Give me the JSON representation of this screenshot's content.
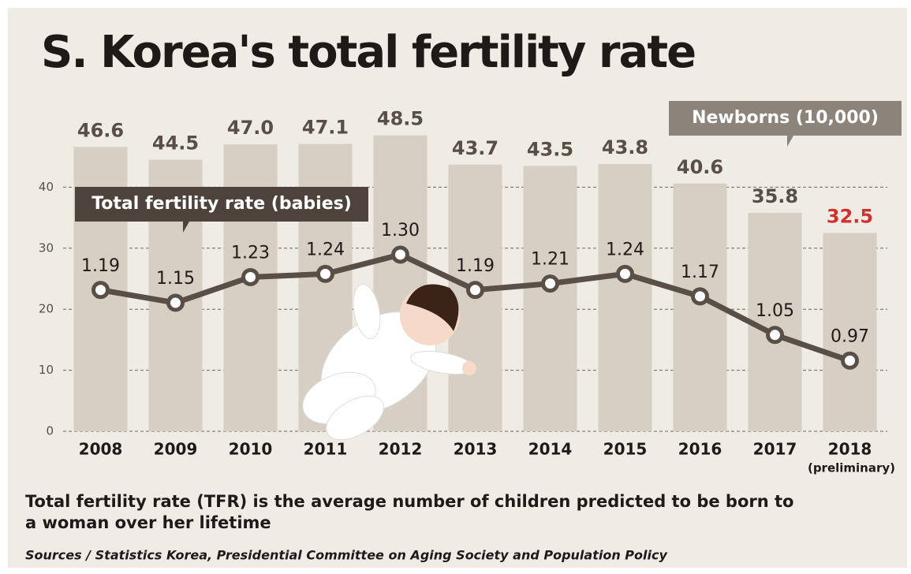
{
  "chart_data": {
    "type": "combo",
    "title": "S. Korea's total fertility rate",
    "categories": [
      "2008",
      "2009",
      "2010",
      "2011",
      "2012",
      "2013",
      "2014",
      "2015",
      "2016",
      "2017",
      "2018"
    ],
    "x_note": "(preliminary)",
    "series": [
      {
        "name": "Newborns (10,000)",
        "type": "bar",
        "color": "#d8cfc4",
        "values": [
          46.6,
          44.5,
          47.0,
          47.1,
          48.5,
          43.7,
          43.5,
          43.8,
          40.6,
          35.8,
          32.5
        ],
        "value_labels": [
          "46.6",
          "44.5",
          "47.0",
          "47.1",
          "48.5",
          "43.7",
          "43.5",
          "43.8",
          "40.6",
          "35.8",
          "32.5"
        ],
        "value_label_colors": [
          "#5a4f47",
          "#5a4f47",
          "#5a4f47",
          "#5a4f47",
          "#5a4f47",
          "#5a4f47",
          "#5a4f47",
          "#5a4f47",
          "#5a4f47",
          "#5a4f47",
          "#d0312d"
        ]
      },
      {
        "name": "Total fertility rate (babies)",
        "type": "line",
        "axis": "y2",
        "color": "#5a4f47",
        "values": [
          1.19,
          1.15,
          1.23,
          1.24,
          1.3,
          1.19,
          1.21,
          1.24,
          1.17,
          1.05,
          0.97
        ],
        "value_labels": [
          "1.19",
          "1.15",
          "1.23",
          "1.24",
          "1.30",
          "1.19",
          "1.21",
          "1.24",
          "1.17",
          "1.05",
          "0.97"
        ]
      }
    ],
    "ylim": [
      0,
      50
    ],
    "yticks": [
      0,
      10,
      20,
      30,
      40
    ],
    "y2lim": [
      0.75,
      1.7
    ],
    "grid": true,
    "note": "Total fertility rate (TFR) is the average number of children predicted to be born to a woman over her lifetime",
    "source": "Sources / Statistics Korea, Presidential Committee on Aging Society and Population Policy"
  }
}
